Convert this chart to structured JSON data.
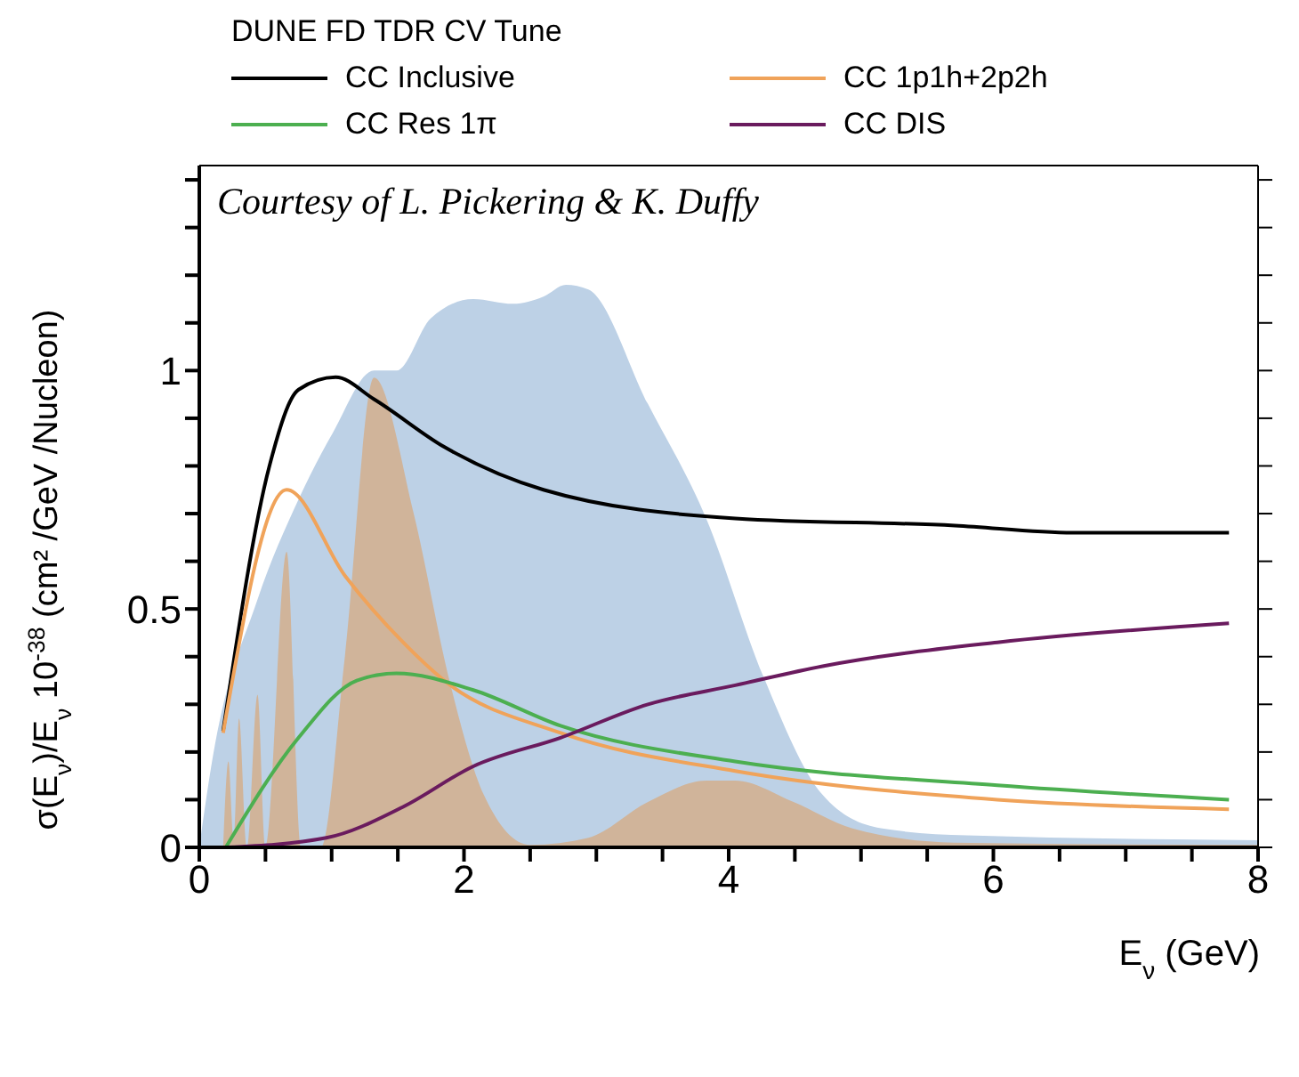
{
  "chart_data": {
    "type": "line",
    "title": "DUNE FD TDR CV Tune",
    "xlabel": "E$_{ν}$ (GeV)",
    "ylabel": "σ(E$_{ν}$)/E$_{ν}$ 10$^{-38}$ (cm² /GeV /Nucleon)",
    "annotations": [
      "Courtesy of L. Pickering & K. Duffy"
    ],
    "xlim": [
      0,
      8
    ],
    "xticks": [
      0,
      {
        "value": 0.5,
        "label": null
      },
      {
        "value": 1,
        "label": null
      },
      {
        "value": 1.5,
        "label": null
      },
      2,
      {
        "value": 2.5,
        "label": null
      },
      {
        "value": 3,
        "label": null
      },
      {
        "value": 3.5,
        "label": null
      },
      4,
      {
        "value": 4.5,
        "label": null
      },
      {
        "value": 5,
        "label": null
      },
      {
        "value": 5.5,
        "label": null
      },
      6,
      {
        "value": 6.5,
        "label": null
      },
      {
        "value": 7,
        "label": null
      },
      {
        "value": 7.5,
        "label": null
      },
      8
    ],
    "ylim": [
      0,
      1.43
    ],
    "yticks": [
      0,
      {
        "value": 0.1,
        "label": null
      },
      {
        "value": 0.2,
        "label": null
      },
      {
        "value": 0.3,
        "label": null
      },
      {
        "value": 0.4,
        "label": null
      },
      0.5,
      {
        "value": 0.6,
        "label": null
      },
      {
        "value": 0.7,
        "label": null
      },
      {
        "value": 0.8,
        "label": null
      },
      {
        "value": 0.9,
        "label": null
      },
      1,
      {
        "value": 1.1,
        "label": null
      },
      {
        "value": 1.2,
        "label": null
      },
      {
        "value": 1.3,
        "label": null
      },
      {
        "value": 1.4,
        "label": null
      }
    ],
    "legend": "top",
    "marker": "none",
    "line_style": "solid",
    "series": [
      {
        "type": "area",
        "color": "#bdd1e6",
        "x": [
          0,
          0.09,
          0.44,
          0.75,
          1.01,
          1.32,
          1.49,
          1.75,
          2.07,
          2.37,
          2.6,
          2.77,
          2.94,
          3.39,
          3.83,
          4.26,
          4.71,
          5.15,
          5.8,
          8
        ],
        "values": [
          0,
          0.17,
          0.52,
          0.73,
          0.87,
          1.0,
          1.0,
          1.11,
          1.15,
          1.14,
          1.155,
          1.18,
          1.17,
          0.93,
          0.69,
          0.36,
          0.11,
          0.04,
          0.025,
          0.015
        ]
      },
      {
        "type": "area",
        "color": "#d0b49a",
        "x": [
          0.18,
          0.22,
          0.26,
          0.3,
          0.36,
          0.44,
          0.5,
          0.66,
          0.77,
          0.92,
          1.1,
          1.32,
          1.62,
          1.89,
          2.15,
          2.5,
          2.94,
          3.39,
          3.83,
          4.05,
          4.49,
          4.93,
          5.7,
          8
        ],
        "values": [
          0,
          0.18,
          0.02,
          0.27,
          0,
          0.32,
          0,
          0.62,
          0,
          0,
          0.4,
          0.985,
          0.7,
          0.35,
          0.11,
          0.005,
          0.02,
          0.095,
          0.14,
          0.14,
          0.095,
          0.04,
          0.01,
          0.005
        ]
      },
      {
        "name": "CC Inclusive",
        "color": "#000000",
        "x": [
          0.18,
          0.53,
          0.75,
          1.03,
          1.32,
          1.85,
          2.6,
          4.05,
          5.71,
          6.6,
          7.78
        ],
        "values": [
          0.244,
          0.8,
          0.96,
          0.986,
          0.94,
          0.84,
          0.75,
          0.69,
          0.675,
          0.66,
          0.66
        ]
      },
      {
        "name": "CC 1p1h+2p2h",
        "color": "#f0a35a",
        "x": [
          0.18,
          0.66,
          1.1,
          1.54,
          1.85,
          2.73,
          4.05,
          6.03,
          7.78
        ],
        "values": [
          0.24,
          0.75,
          0.57,
          0.43,
          0.35,
          0.24,
          0.16,
          0.1,
          0.08
        ]
      },
      {
        "name": "CC Res 1π",
        "color": "#4caf50",
        "x": [
          0.2,
          0.75,
          1.19,
          1.49,
          2.07,
          2.73,
          4.05,
          6.03,
          7.78
        ],
        "values": [
          0,
          0.23,
          0.35,
          0.365,
          0.33,
          0.255,
          0.18,
          0.13,
          0.1
        ]
      },
      {
        "name": "CC DIS",
        "color": "#6a1b5e",
        "x": [
          0.2,
          0.96,
          1.54,
          2.07,
          2.73,
          3.39,
          4.05,
          4.71,
          6.03,
          7.78
        ],
        "values": [
          0,
          0.02,
          0.085,
          0.17,
          0.23,
          0.3,
          0.34,
          0.38,
          0.43,
          0.47
        ]
      }
    ]
  }
}
